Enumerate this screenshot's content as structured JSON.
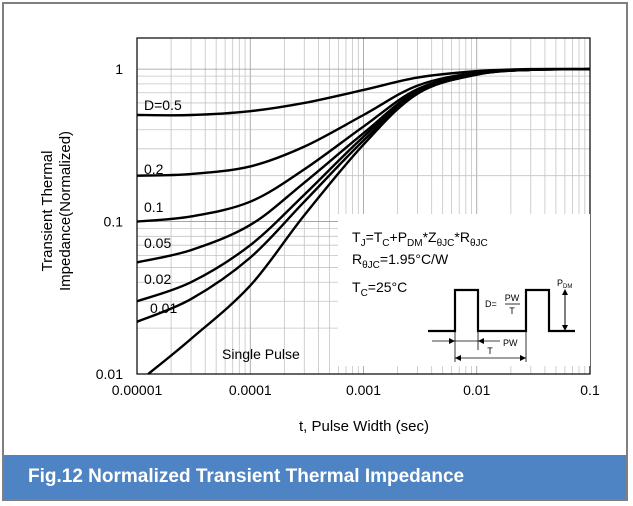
{
  "caption": "Fig.12 Normalized Transient Thermal Impedance",
  "chart_data": {
    "type": "line",
    "xscale": "log",
    "yscale": "log",
    "xlim": [
      1e-05,
      0.1
    ],
    "ylim": [
      0.01,
      1
    ],
    "xlabel": "t, Pulse Width (sec)",
    "ylabel_lines": [
      "Transient Thermal",
      "Impedance(Normalized)"
    ],
    "x_ticks": [
      {
        "value": 1e-05,
        "label": "0.00001"
      },
      {
        "value": 0.0001,
        "label": "0.0001"
      },
      {
        "value": 0.001,
        "label": "0.001"
      },
      {
        "value": 0.01,
        "label": "0.01"
      },
      {
        "value": 0.1,
        "label": "0.1"
      }
    ],
    "y_ticks": [
      {
        "value": 1,
        "label": "1"
      },
      {
        "value": 0.1,
        "label": "0.1"
      },
      {
        "value": 0.01,
        "label": "0.01"
      }
    ],
    "grid": true,
    "x": [
      1e-05,
      3e-05,
      0.0001,
      0.0003,
      0.001,
      0.003,
      0.01,
      0.03,
      0.1
    ],
    "series": [
      {
        "name": "D=0.5",
        "values": [
          0.5,
          0.5,
          0.53,
          0.6,
          0.73,
          0.88,
          0.97,
          1.0,
          1.0
        ]
      },
      {
        "name": "0.2",
        "values": [
          0.2,
          0.205,
          0.23,
          0.31,
          0.5,
          0.78,
          0.95,
          0.99,
          1.0
        ]
      },
      {
        "name": "0.1",
        "values": [
          0.1,
          0.108,
          0.135,
          0.22,
          0.42,
          0.74,
          0.94,
          0.99,
          1.0
        ]
      },
      {
        "name": "0.05",
        "values": [
          0.054,
          0.065,
          0.095,
          0.18,
          0.38,
          0.72,
          0.93,
          0.99,
          1.0
        ]
      },
      {
        "name": "0.02",
        "values": [
          0.03,
          0.04,
          0.07,
          0.15,
          0.36,
          0.71,
          0.93,
          0.99,
          1.0
        ]
      },
      {
        "name": "0.01",
        "values": [
          0.022,
          0.031,
          0.058,
          0.135,
          0.34,
          0.7,
          0.92,
          0.99,
          1.0
        ]
      },
      {
        "name": "Single Pulse",
        "values": [
          0.0087,
          0.017,
          0.038,
          0.11,
          0.32,
          0.69,
          0.92,
          0.99,
          1.0
        ]
      }
    ],
    "annotations": {
      "formula": {
        "main": "T",
        "sub1": "J",
        "eq": "=T",
        "sub2": "C",
        "plus": "+P",
        "sub3": "DM",
        "star1": "*Z",
        "sub4": "θJC",
        "star2": "*R",
        "sub5": "θJC"
      },
      "rth": {
        "main": "R",
        "sub": "θJC",
        "rest": "=1.95°C/W"
      },
      "tc": {
        "main": "T",
        "sub": "C",
        "rest": "=25°C"
      },
      "inset": {
        "pdm_main": "P",
        "pdm_sub": "DM",
        "duty": "D=",
        "pw": "PW",
        "t": "T",
        "pw_label": "PW",
        "t_label": "T"
      }
    }
  }
}
